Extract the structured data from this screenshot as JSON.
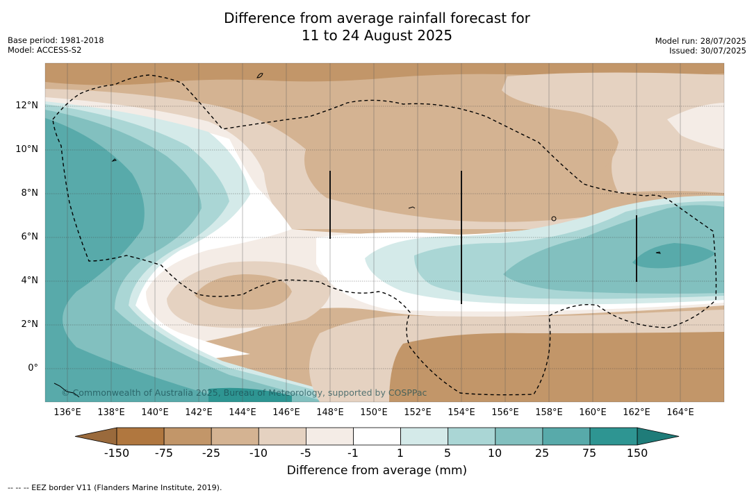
{
  "title_line1": "Difference from average rainfall forecast for",
  "title_line2": "11 to 24 August 2025",
  "base_period": "Base period: 1981-2018",
  "model": "Model: ACCESS-S2",
  "model_run": "Model run: 28/07/2025",
  "issued": "Issued: 30/07/2025",
  "lat_labels": [
    "12°N",
    "10°N",
    "8°N",
    "6°N",
    "4°N",
    "2°N",
    "0°"
  ],
  "lon_labels": [
    "136°E",
    "138°E",
    "140°E",
    "142°E",
    "144°E",
    "146°E",
    "148°E",
    "150°E",
    "152°E",
    "154°E",
    "156°E",
    "158°E",
    "160°E",
    "162°E",
    "164°E"
  ],
  "copyright": "© Commonwealth of Australia 2025, Bureau of Meteorology, supported by COSPPac",
  "colorbar_label": "Difference from average (mm)",
  "colorbar_ticks": [
    "-150",
    "-75",
    "-25",
    "-10",
    "-5",
    "-1",
    "1",
    "5",
    "10",
    "25",
    "75",
    "150"
  ],
  "colorbar_colors": [
    "#9a6a3c",
    "#b0773f",
    "#c29669",
    "#d4b392",
    "#e5d2c1",
    "#f4ece6",
    "#ffffff",
    "#d4eae9",
    "#aad6d5",
    "#82c0bf",
    "#58aaaa",
    "#2e9592",
    "#1f7c79"
  ],
  "eez_note": "-- -- -- EEZ border V11 (Flanders Marine Institute, 2019).",
  "map_extent": {
    "lon_min": 135,
    "lon_max": 166,
    "lat_min": -1.5,
    "lat_max": 14
  }
}
